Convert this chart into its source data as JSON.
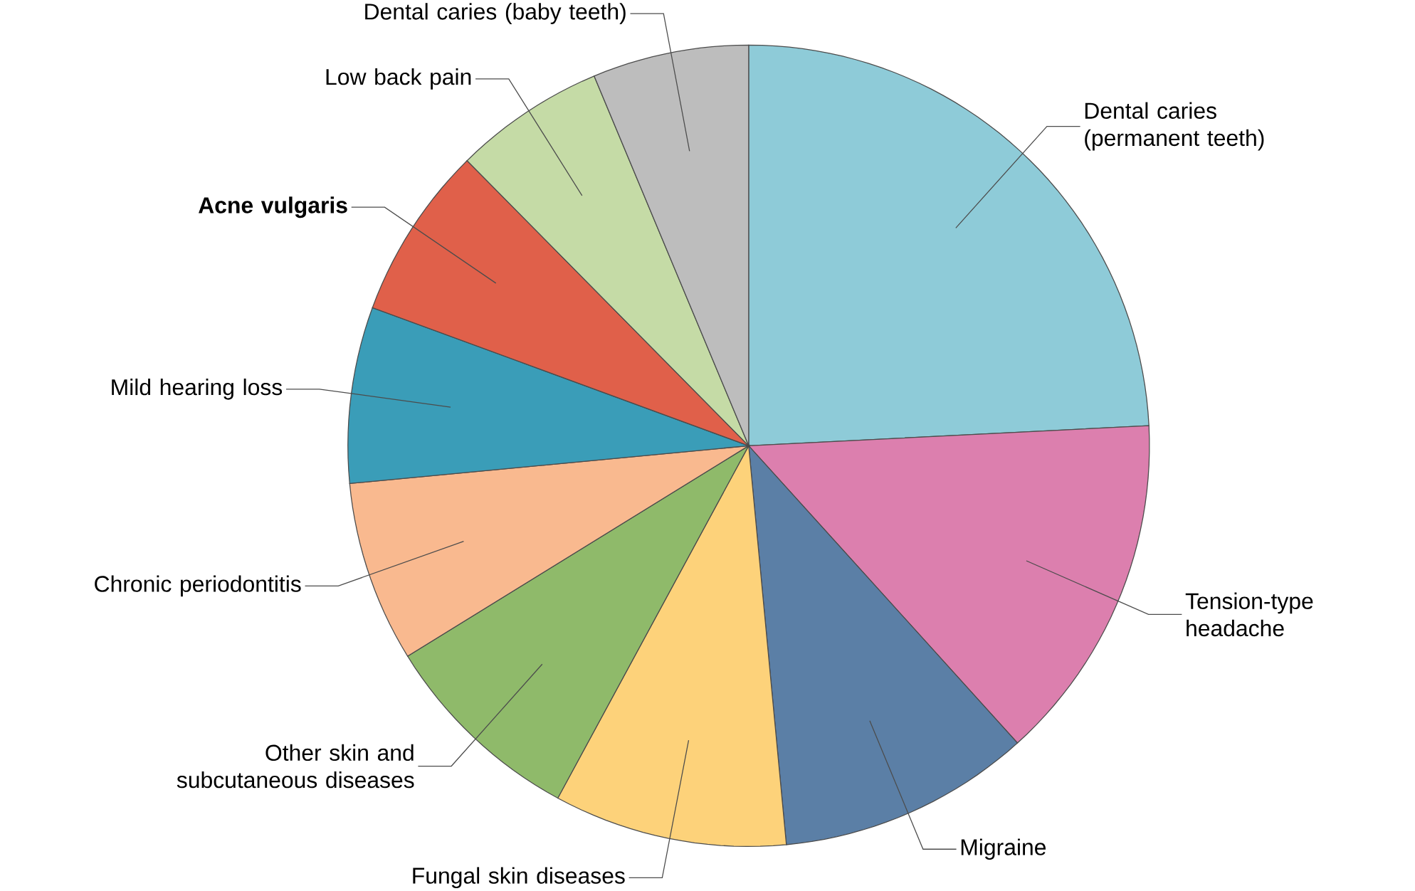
{
  "chart_data": {
    "type": "pie",
    "categories": [
      "Dental caries (permanent teeth)",
      "Tension-type headache",
      "Migraine",
      "Fungal skin diseases",
      "Other skin and subcutaneous diseases",
      "Chronic periodontitis",
      "Mild hearing loss",
      "**Acne vulgaris**",
      "Low back pain",
      "Dental caries (baby teeth)"
    ],
    "values": [
      24.2,
      14.1,
      10.2,
      9.4,
      8.3,
      7.3,
      7.1,
      7.0,
      6.1,
      6.3
    ],
    "colors": [
      "#8ecbd8",
      "#dc7fae",
      "#5b7fa6",
      "#fdd27a",
      "#8fba6a",
      "#f9b98f",
      "#3a9db8",
      "#e0604a",
      "#c5dba6",
      "#bdbdbd"
    ]
  }
}
